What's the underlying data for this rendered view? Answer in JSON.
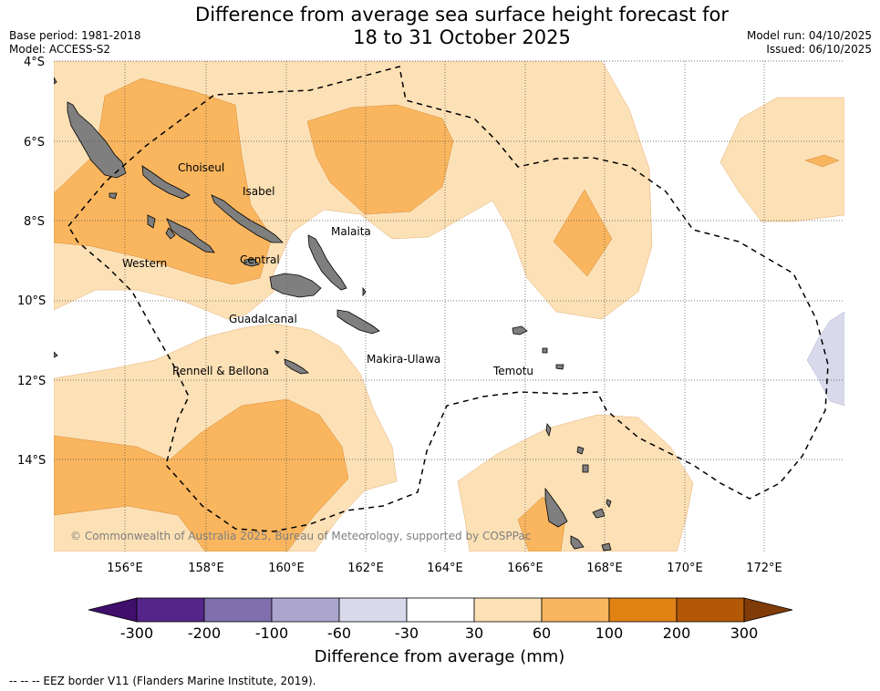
{
  "title": {
    "line1": "Difference from average sea surface height forecast for",
    "line2": "18 to 31 October 2025"
  },
  "meta": {
    "base_period": "Base period: 1981-2018",
    "model": "Model: ACCESS-S2",
    "model_run": "Model run: 04/10/2025",
    "issued": "Issued: 06/10/2025"
  },
  "map": {
    "lat_ticks": [
      "4°S",
      "6°S",
      "8°S",
      "10°S",
      "12°S",
      "14°S"
    ],
    "lon_ticks": [
      "156°E",
      "158°E",
      "160°E",
      "162°E",
      "164°E",
      "166°E",
      "168°E",
      "170°E",
      "172°E"
    ],
    "region_labels": [
      "Choiseul",
      "Isabel",
      "Malaita",
      "Western",
      "Central",
      "Guadalcanal",
      "Rennell & Bellona",
      "Makira-Ulawa",
      "Temotu"
    ],
    "copyright": "© Commonwealth of Australia 2025, Bureau of Meteorology, supported by COSPPac"
  },
  "colorbar": {
    "ticks": [
      "-300",
      "-200",
      "-100",
      "-60",
      "-30",
      "30",
      "60",
      "100",
      "200",
      "300"
    ],
    "colors": [
      "#3f0f6b",
      "#562589",
      "#7f6fac",
      "#aca6cf",
      "#d8d9eb",
      "#ffffff",
      "#fde1b6",
      "#f9b65f",
      "#e08214",
      "#b35806",
      "#7f3b08"
    ],
    "title": "Difference from average (mm)"
  },
  "footer": {
    "legend": "--  --  -- EEZ border V11 (Flanders Marine Institute, 2019)."
  }
}
